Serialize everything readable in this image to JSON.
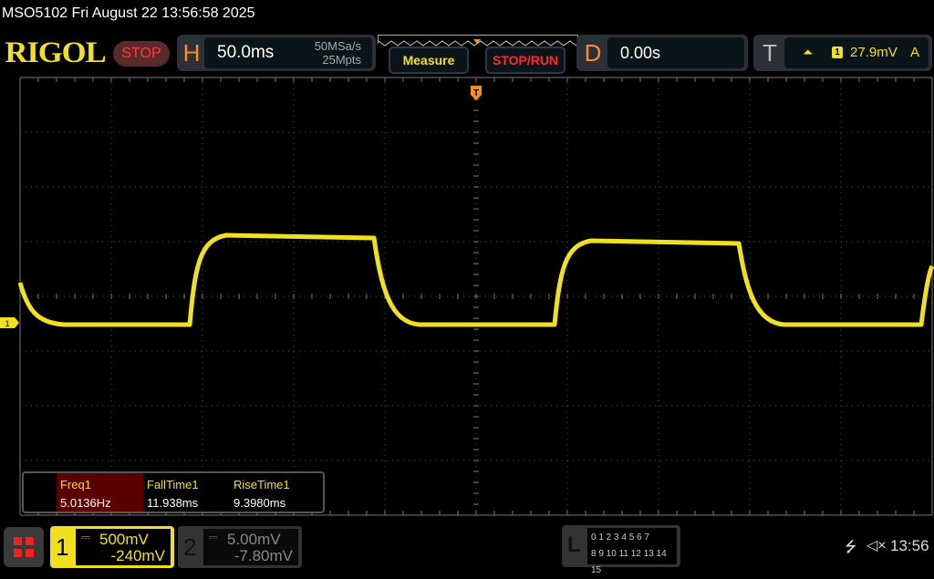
{
  "titlebar": {
    "text": "MSO5102  Fri August 22 13:56:58 2025"
  },
  "brand": {
    "logo": "RIGOL",
    "run_state": "STOP"
  },
  "horizontal": {
    "letter": "H",
    "timebase": "50.0ms",
    "sample_rate": "50MSa/s",
    "memory_depth": "25Mpts"
  },
  "buttons": {
    "measure": "Measure",
    "stop_run": "STOP/RUN"
  },
  "delay": {
    "letter": "D",
    "value": "0.00s"
  },
  "trigger": {
    "letter": "T",
    "edge_icon": "rising-edge-icon",
    "source": "1",
    "level": "27.9mV",
    "mode": "A"
  },
  "markers": {
    "trigger_marker": "T",
    "ch1_marker": "1"
  },
  "measurements": [
    {
      "label": "Freq1",
      "value": "5.0136Hz"
    },
    {
      "label": "FallTime1",
      "value": "11.938ms"
    },
    {
      "label": "RiseTime1",
      "value": "9.3980ms"
    }
  ],
  "channels": [
    {
      "number": "1",
      "coupling_icon": "dc-coupling-icon",
      "scale": "500mV",
      "offset": "-240mV",
      "color": "#f0e020"
    },
    {
      "number": "2",
      "coupling_icon": "dc-coupling-icon",
      "scale": "5.00mV",
      "offset": "-7.80mV",
      "color": "#888888"
    }
  ],
  "logic": {
    "letter": "L",
    "row1": "0 1 2 3  4 5 6 7",
    "row2": "8 9 10 11 12 13 14 15"
  },
  "status": {
    "time": "13:56",
    "usb_icon": "usb-icon",
    "sound_icon": "speaker-muted-icon"
  },
  "colors": {
    "ch1": "#f0e020",
    "accent_orange": "#ff8a1e",
    "stop_red": "#ff3b3b",
    "grid": "#555555"
  }
}
